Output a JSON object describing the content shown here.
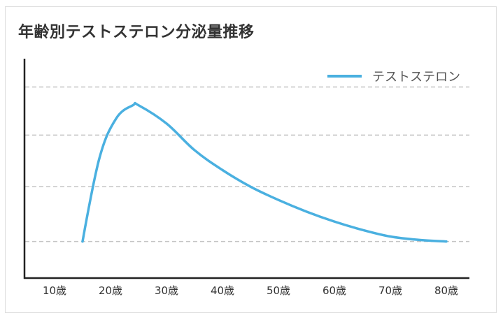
{
  "chart_data": {
    "type": "line",
    "title": "年齢別テストステロン分泌量推移",
    "xlabel": "",
    "ylabel": "",
    "categories": [
      "10歳",
      "20歳",
      "30歳",
      "40歳",
      "50歳",
      "60歳",
      "70歳",
      "80歳"
    ],
    "x": [
      10,
      20,
      30,
      40,
      50,
      60,
      70,
      80
    ],
    "series": [
      {
        "name": "テストステロン",
        "color": "#4ab0e0",
        "points": [
          [
            15,
            0.0
          ],
          [
            18,
            0.5
          ],
          [
            21,
            0.74
          ],
          [
            24,
            0.82
          ],
          [
            25,
            0.82
          ],
          [
            30,
            0.71
          ],
          [
            35,
            0.55
          ],
          [
            40,
            0.43
          ],
          [
            45,
            0.33
          ],
          [
            50,
            0.25
          ],
          [
            55,
            0.18
          ],
          [
            60,
            0.12
          ],
          [
            65,
            0.07
          ],
          [
            70,
            0.03
          ],
          [
            75,
            0.01
          ],
          [
            80,
            0.0
          ]
        ]
      }
    ],
    "xlim": [
      10,
      80
    ],
    "ylim": [
      -0.22,
      1.1
    ],
    "gridlines_y": [
      0.0,
      0.33,
      0.64,
      0.93
    ],
    "grid": "horizontal dashed",
    "legend_position": "top-right",
    "y_ticks_labeled": false
  }
}
